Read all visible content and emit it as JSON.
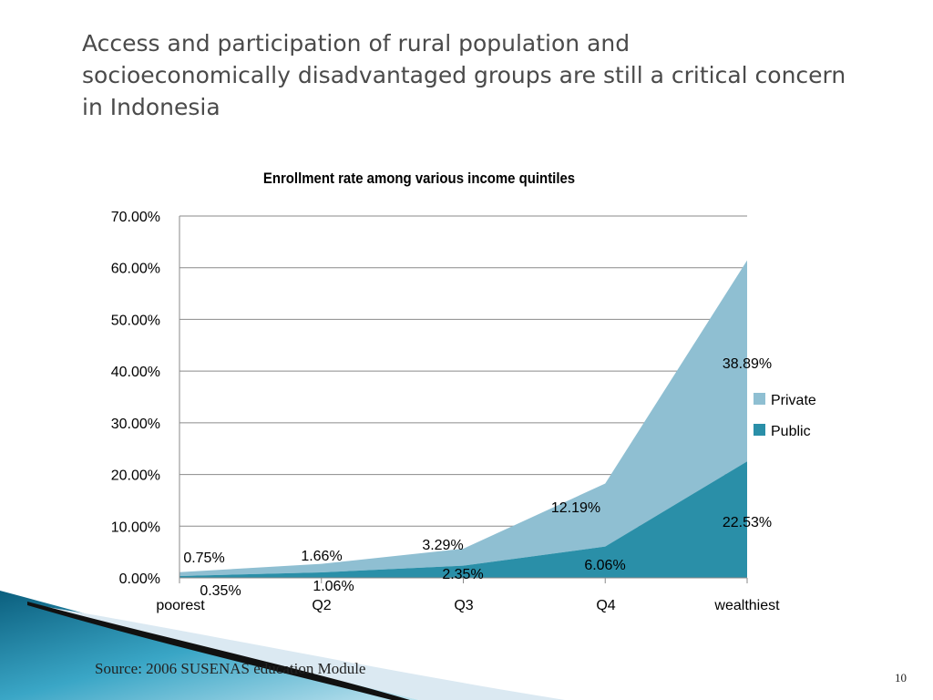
{
  "slide": {
    "title_lines": [
      "Access and participation of rural population and",
      "socioeconomically disadvantaged groups are still a critical concern",
      "in Indonesia"
    ],
    "source": "Source: 2006 SUSENAS education Module",
    "page_number": "10"
  },
  "colors": {
    "public": "#2a8fa8",
    "private": "#8fbfd2",
    "grid": "#8a8a8a",
    "accent_dark": "#0f6f8e"
  },
  "chart_data": {
    "type": "area",
    "stacked": true,
    "title": "Enrollment rate among various income quintiles",
    "categories": [
      "poorest",
      "Q2",
      "Q3",
      "Q4",
      "wealthiest"
    ],
    "series": [
      {
        "name": "Public",
        "values": [
          0.35,
          1.06,
          2.35,
          6.06,
          22.53
        ],
        "labels": [
          "0.35%",
          "1.06%",
          "2.35%",
          "6.06%",
          "22.53%"
        ]
      },
      {
        "name": "Private",
        "values": [
          0.75,
          1.66,
          3.29,
          12.19,
          38.89
        ],
        "labels": [
          "0.75%",
          "1.66%",
          "3.29%",
          "12.19%",
          "38.89%"
        ]
      }
    ],
    "ylim": [
      0,
      70
    ],
    "yticks": [
      0,
      10,
      20,
      30,
      40,
      50,
      60,
      70
    ],
    "ytick_labels": [
      "0.00%",
      "10.00%",
      "20.00%",
      "30.00%",
      "40.00%",
      "50.00%",
      "60.00%",
      "70.00%"
    ],
    "grid": true,
    "legend_position": "right",
    "legend": [
      "Private",
      "Public"
    ]
  }
}
